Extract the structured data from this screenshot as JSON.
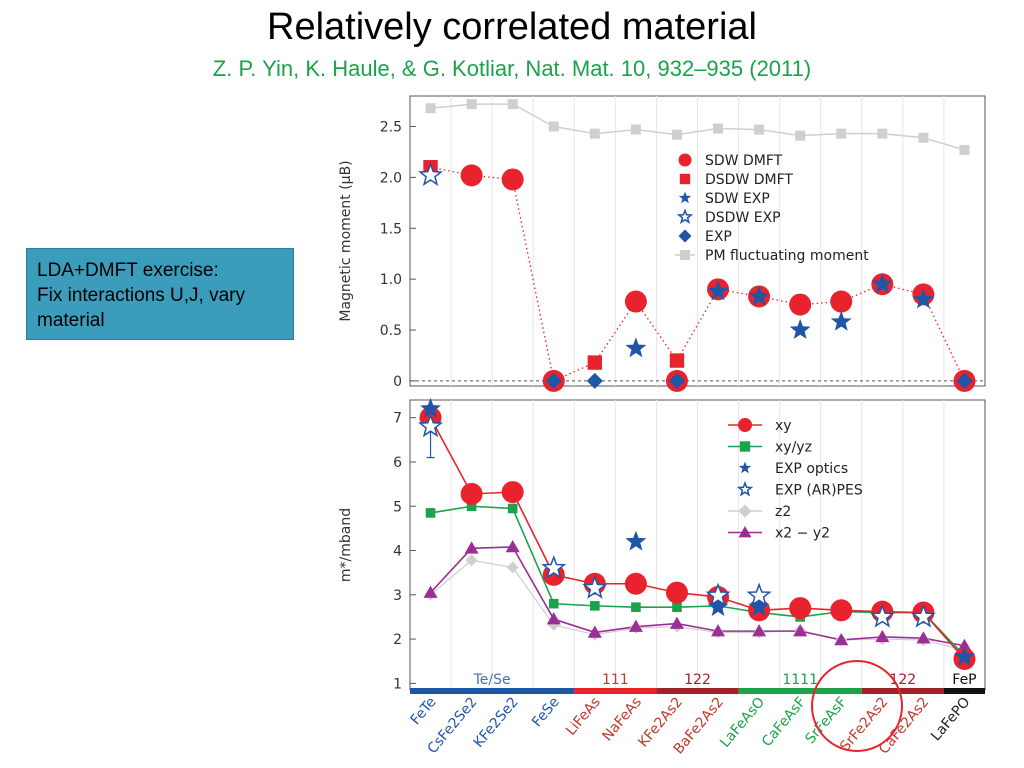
{
  "slide": {
    "title": "Relatively correlated material",
    "citation": "Z. P. Yin, K. Haule, & G. Kotliar, Nat. Mat. 10, 932–935 (2011)",
    "note_lines": [
      "LDA+DMFT exercise:",
      "Fix interactions U,J, vary",
      "material"
    ]
  },
  "colors": {
    "red": "#e8232d",
    "blue": "#1f56a8",
    "green": "#1aa34a",
    "magenta": "#9b2f96",
    "gray": "#cfcfcf",
    "note_bg": "#3b9dbb",
    "circle_annotation": "#e8232d"
  },
  "materials": {
    "labels": [
      "FeTe",
      "CsFe2Se2",
      "KFe2Se2",
      "FeSe",
      "LiFeAs",
      "NaFeAs",
      "KFe2As2",
      "BaFe2As2",
      "LaFeAsO",
      "CaFeAsF",
      "SrFeAsF",
      "SrFe2As2",
      "CaFe2As2",
      "LaFePO"
    ],
    "label_colors": [
      "#1f56a8",
      "#1f56a8",
      "#1f56a8",
      "#1f56a8",
      "#c0392b",
      "#c0392b",
      "#c0392b",
      "#c0392b",
      "#1aa34a",
      "#1aa34a",
      "#1aa34a",
      "#c0392b",
      "#c0392b",
      "#222222"
    ],
    "groups": [
      {
        "label": "Te/Se",
        "start": 0,
        "end": 3,
        "color": "#1f56a8",
        "text_color": "#4a6fb5"
      },
      {
        "label": "111",
        "start": 4,
        "end": 5,
        "color": "#e8232d",
        "text_color": "#c0392b"
      },
      {
        "label": "122",
        "start": 6,
        "end": 7,
        "color": "#a3202b",
        "text_color": "#a3202b"
      },
      {
        "label": "1111",
        "start": 8,
        "end": 10,
        "color": "#1aa34a",
        "text_color": "#1aa34a"
      },
      {
        "label": "122",
        "start": 11,
        "end": 12,
        "color": "#a3202b",
        "text_color": "#a3202b"
      },
      {
        "label": "FeP",
        "start": 13,
        "end": 13,
        "color": "#111111",
        "text_color": "#111111"
      }
    ]
  },
  "chart_data": [
    {
      "type": "scatter",
      "ylabel": "Magnetic moment (μB)",
      "ylim": [
        -0.05,
        2.8
      ],
      "yticks": [
        0,
        0.5,
        1.0,
        1.5,
        2.0,
        2.5
      ],
      "ytick_labels": [
        "0",
        "0.5",
        "1.0",
        "1.5",
        "2.0",
        "2.5"
      ],
      "legend_position": "top-right",
      "series": [
        {
          "name": "SDW DMFT",
          "marker": "circle",
          "color": "#e8232d",
          "points": [
            [
              1,
              2.02
            ],
            [
              2,
              1.98
            ],
            [
              3,
              0
            ],
            [
              5,
              0.78
            ],
            [
              6,
              0
            ],
            [
              7,
              0.9
            ],
            [
              8,
              0.83
            ],
            [
              9,
              0.75
            ],
            [
              10,
              0.78
            ],
            [
              11,
              0.95
            ],
            [
              12,
              0.85
            ],
            [
              13,
              0
            ]
          ]
        },
        {
          "name": "DSDW DMFT",
          "marker": "square",
          "color": "#e8232d",
          "points": [
            [
              0,
              2.1
            ],
            [
              3,
              0
            ],
            [
              4,
              0.18
            ],
            [
              6,
              0.2
            ]
          ]
        },
        {
          "name": "SDW EXP",
          "marker": "star",
          "color": "#1f56a8",
          "points": [
            [
              5,
              0.32
            ],
            [
              7,
              0.88
            ],
            [
              8,
              0.83
            ],
            [
              9,
              0.5
            ],
            [
              10,
              0.58
            ],
            [
              11,
              0.95
            ],
            [
              12,
              0.8
            ]
          ]
        },
        {
          "name": "DSDW EXP",
          "marker": "star-open",
          "color": "#1f56a8",
          "points": [
            [
              0,
              2.02
            ]
          ]
        },
        {
          "name": "EXP",
          "marker": "diamond",
          "color": "#1f56a8",
          "points": [
            [
              3,
              0
            ],
            [
              4,
              0
            ],
            [
              6,
              0
            ],
            [
              13,
              0
            ]
          ]
        },
        {
          "name": "PM fluctuating moment",
          "marker": "square-line",
          "color": "#cfcfcf",
          "points": [
            [
              0,
              2.68
            ],
            [
              1,
              2.72
            ],
            [
              2,
              2.72
            ],
            [
              3,
              2.5
            ],
            [
              4,
              2.43
            ],
            [
              5,
              2.47
            ],
            [
              6,
              2.42
            ],
            [
              7,
              2.48
            ],
            [
              8,
              2.47
            ],
            [
              9,
              2.41
            ],
            [
              10,
              2.43
            ],
            [
              11,
              2.43
            ],
            [
              12,
              2.39
            ],
            [
              13,
              2.27
            ]
          ]
        }
      ],
      "dotted_links": [
        [
          [
            0,
            2.1
          ],
          [
            1,
            2.02
          ],
          [
            2,
            1.98
          ],
          [
            3,
            0
          ],
          [
            4,
            0.18
          ],
          [
            5,
            0.78
          ],
          [
            6,
            0.2
          ],
          [
            7,
            0.9
          ],
          [
            8,
            0.83
          ],
          [
            9,
            0.75
          ],
          [
            10,
            0.78
          ],
          [
            11,
            0.95
          ],
          [
            12,
            0.85
          ],
          [
            13,
            0
          ]
        ]
      ]
    },
    {
      "type": "line",
      "ylabel": "m*/mband",
      "ylim": [
        0.85,
        7.4
      ],
      "yticks": [
        1,
        2,
        3,
        4,
        5,
        6,
        7
      ],
      "ytick_labels": [
        "1",
        "2",
        "3",
        "4",
        "5",
        "6",
        "7"
      ],
      "legend_position": "top-right",
      "series": [
        {
          "name": "xy",
          "marker": "circle",
          "color": "#e8232d",
          "values": [
            7.0,
            5.28,
            5.32,
            3.45,
            3.25,
            3.25,
            3.05,
            2.95,
            2.65,
            2.7,
            2.65,
            2.62,
            2.6,
            1.55
          ]
        },
        {
          "name": "xy/yz",
          "marker": "square",
          "color": "#1aa34a",
          "values": [
            4.85,
            5.0,
            4.95,
            2.8,
            2.75,
            2.72,
            2.72,
            2.75,
            2.6,
            2.5,
            2.62,
            2.6,
            2.6,
            1.62
          ]
        },
        {
          "name": "EXP optics",
          "marker": "star",
          "color": "#1f56a8",
          "points": [
            [
              0,
              7.2
            ],
            [
              5,
              4.2
            ],
            [
              7,
              2.72
            ],
            [
              8,
              2.72
            ],
            [
              13,
              1.6
            ]
          ]
        },
        {
          "name": "EXP (AR)PES",
          "marker": "star-open",
          "color": "#1f56a8",
          "points": [
            [
              0,
              6.8
            ],
            [
              3,
              3.6
            ],
            [
              4,
              3.15
            ],
            [
              7,
              2.98
            ],
            [
              8,
              2.98
            ],
            [
              11,
              2.5
            ],
            [
              12,
              2.5
            ]
          ]
        },
        {
          "name": "z2",
          "marker": "diamond-line",
          "color": "#cfcfcf",
          "values": [
            3.0,
            3.78,
            3.62,
            2.32,
            2.1,
            2.25,
            2.28,
            2.15,
            2.15,
            2.2,
            1.98,
            2.0,
            1.98,
            1.75
          ]
        },
        {
          "name": "x2 − y2",
          "marker": "triangle",
          "color": "#9b2f96",
          "values": [
            3.05,
            4.05,
            4.08,
            2.45,
            2.15,
            2.28,
            2.35,
            2.18,
            2.18,
            2.18,
            1.98,
            2.05,
            2.02,
            1.85
          ]
        }
      ]
    }
  ]
}
